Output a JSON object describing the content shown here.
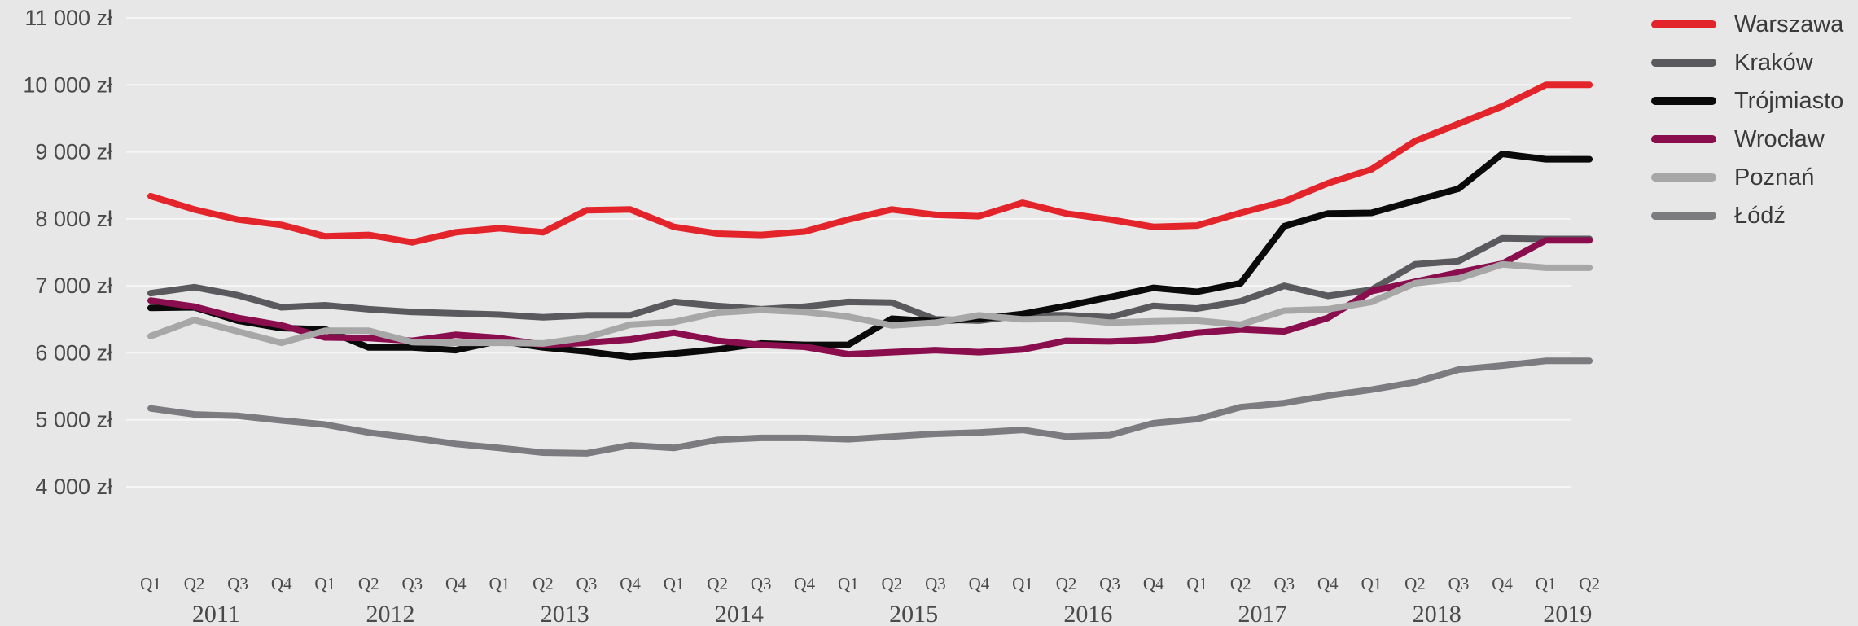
{
  "chart_data": {
    "type": "line",
    "title": "",
    "xlabel": "",
    "ylabel": "",
    "ylim": [
      4000,
      11000
    ],
    "yticks": [
      "4 000 zł",
      "5 000 zł",
      "6 000 zł",
      "7 000 zł",
      "8 000 zł",
      "9 000 zł",
      "10 000 zł",
      "11 000 zł"
    ],
    "ytick_values": [
      4000,
      5000,
      6000,
      7000,
      8000,
      9000,
      10000,
      11000
    ],
    "grid": true,
    "legend_position": "right",
    "categories": [
      "Q1",
      "Q2",
      "Q3",
      "Q4",
      "Q1",
      "Q2",
      "Q3",
      "Q4",
      "Q1",
      "Q2",
      "Q3",
      "Q4",
      "Q1",
      "Q2",
      "Q3",
      "Q4",
      "Q1",
      "Q2",
      "Q3",
      "Q4",
      "Q1",
      "Q2",
      "Q3",
      "Q4",
      "Q1",
      "Q2",
      "Q3",
      "Q4",
      "Q1",
      "Q2",
      "Q3",
      "Q4",
      "Q1",
      "Q2"
    ],
    "year_labels": [
      {
        "label": "2011",
        "center_index": 1.5
      },
      {
        "label": "2012",
        "center_index": 5.5
      },
      {
        "label": "2013",
        "center_index": 9.5
      },
      {
        "label": "2014",
        "center_index": 13.5
      },
      {
        "label": "2015",
        "center_index": 17.5
      },
      {
        "label": "2016",
        "center_index": 21.5
      },
      {
        "label": "2017",
        "center_index": 25.5
      },
      {
        "label": "2018",
        "center_index": 29.5
      },
      {
        "label": "2019",
        "center_index": 32.5
      }
    ],
    "series": [
      {
        "name": "Warszawa",
        "color": "#e3242b",
        "values": [
          8340,
          8140,
          7990,
          7910,
          7740,
          7760,
          7650,
          7800,
          7860,
          7800,
          8130,
          8140,
          7880,
          7780,
          7760,
          7810,
          7990,
          8140,
          8060,
          8040,
          8240,
          8080,
          7990,
          7880,
          7900,
          8090,
          8260,
          8530,
          8740,
          9160,
          9420,
          9680,
          10000,
          10000
        ]
      },
      {
        "name": "Kraków",
        "color": "#5a5a5e",
        "values": [
          6890,
          6980,
          6860,
          6680,
          6710,
          6650,
          6610,
          6590,
          6570,
          6530,
          6560,
          6560,
          6760,
          6700,
          6650,
          6690,
          6760,
          6750,
          6500,
          6480,
          6560,
          6560,
          6530,
          6700,
          6660,
          6770,
          7000,
          6850,
          6940,
          7320,
          7370,
          7710,
          7700,
          7700
        ]
      },
      {
        "name": "Trójmiasto",
        "color": "#0a0a0a",
        "values": [
          6670,
          6680,
          6480,
          6370,
          6350,
          6080,
          6080,
          6040,
          6180,
          6080,
          6020,
          5940,
          5990,
          6050,
          6140,
          6120,
          6120,
          6510,
          6470,
          6510,
          6580,
          6700,
          6830,
          6970,
          6910,
          7040,
          7890,
          8080,
          8090,
          8270,
          8450,
          8970,
          8890,
          8890
        ]
      },
      {
        "name": "Wrocław",
        "color": "#8a0e4e",
        "values": [
          6780,
          6690,
          6520,
          6410,
          6230,
          6220,
          6180,
          6270,
          6220,
          6120,
          6150,
          6200,
          6300,
          6180,
          6120,
          6090,
          5980,
          6010,
          6040,
          6010,
          6050,
          6180,
          6170,
          6200,
          6300,
          6350,
          6320,
          6520,
          6920,
          7060,
          7200,
          7330,
          7680,
          7680
        ]
      },
      {
        "name": "Poznań",
        "color": "#a7a7a7",
        "values": [
          6250,
          6490,
          6320,
          6150,
          6330,
          6330,
          6160,
          6150,
          6150,
          6140,
          6230,
          6420,
          6460,
          6600,
          6640,
          6610,
          6540,
          6410,
          6450,
          6560,
          6500,
          6510,
          6450,
          6470,
          6480,
          6420,
          6630,
          6650,
          6760,
          7040,
          7110,
          7320,
          7270,
          7270
        ]
      },
      {
        "name": "Łódź",
        "color": "#7b7b80",
        "values": [
          5170,
          5080,
          5060,
          4990,
          4930,
          4810,
          4730,
          4640,
          4580,
          4510,
          4500,
          4620,
          4580,
          4700,
          4730,
          4730,
          4710,
          4750,
          4790,
          4810,
          4850,
          4750,
          4770,
          4950,
          5010,
          5190,
          5250,
          5360,
          5450,
          5560,
          5750,
          5810,
          5880,
          5880
        ]
      }
    ]
  }
}
